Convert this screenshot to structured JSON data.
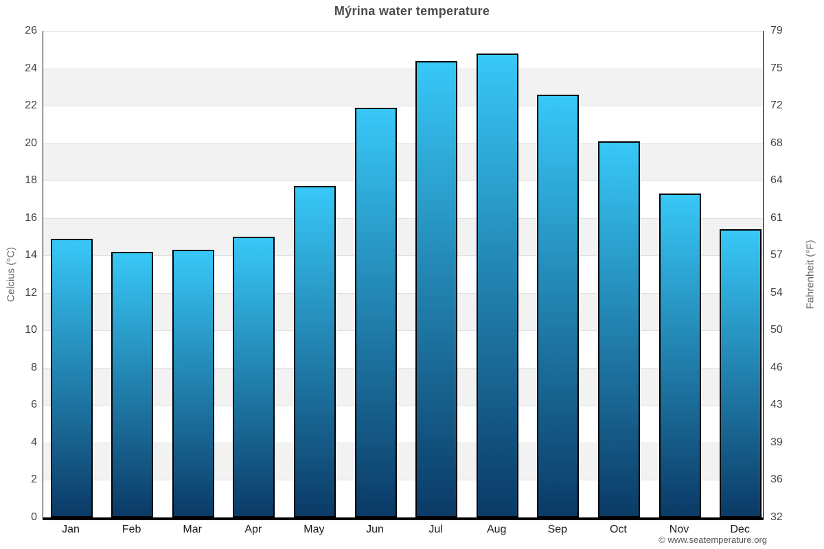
{
  "footer": {
    "text": "© www.seatemperature.org"
  },
  "chart_data": {
    "type": "bar",
    "title": "Mýrina water temperature",
    "categories": [
      "Jan",
      "Feb",
      "Mar",
      "Apr",
      "May",
      "Jun",
      "Jul",
      "Aug",
      "Sep",
      "Oct",
      "Nov",
      "Dec"
    ],
    "values": [
      14.9,
      14.2,
      14.3,
      15.0,
      17.7,
      21.9,
      24.4,
      24.8,
      22.6,
      20.1,
      17.3,
      15.4
    ],
    "unit": "°C",
    "ylabel_left": "Celcius (°C)",
    "ylabel_right": "Fahrenheit (°F)",
    "ylim": [
      0,
      26
    ],
    "celsius_ticks": [
      0,
      2,
      4,
      6,
      8,
      10,
      12,
      14,
      16,
      18,
      20,
      22,
      24,
      26
    ],
    "fahrenheit_ticks": [
      32,
      36,
      39,
      43,
      46,
      50,
      54,
      57,
      61,
      64,
      68,
      72,
      75,
      79
    ],
    "grid": true,
    "band_fill": "alternating",
    "legend": "none",
    "colors": {
      "bar_gradient_top": "#38c8f7",
      "bar_gradient_bottom": "#0b3a66",
      "bar_border": "#000000",
      "band_alt": "#f2f2f2",
      "band_main": "#ffffff",
      "gridline": "#e0e0e0",
      "axis_line": "#000000",
      "title_text": "#4a4a4a",
      "tick_text": "#444444",
      "month_text": "#1a1a1a",
      "axis_title_text": "#666666",
      "footer_text": "#555555"
    }
  }
}
